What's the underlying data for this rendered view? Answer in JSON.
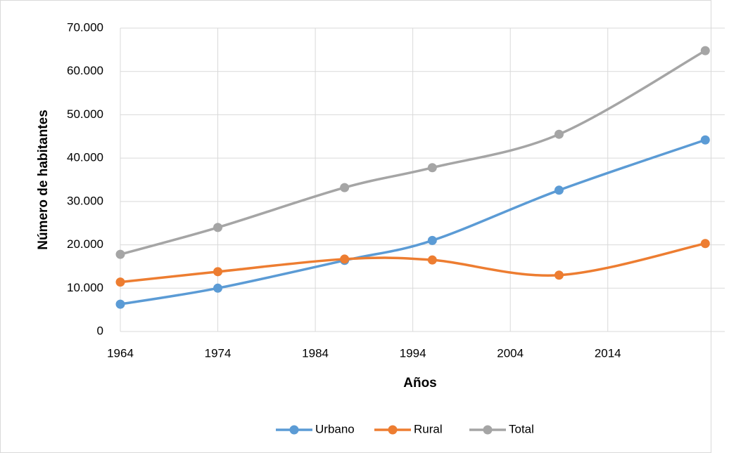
{
  "chart_data": {
    "type": "line",
    "xlabel": "Años",
    "ylabel": "Número de habitantes",
    "x": [
      1964,
      1974,
      1987,
      1996,
      2009,
      2024
    ],
    "series": [
      {
        "name": "Urbano",
        "color": "#5b9bd5",
        "values": [
          6300,
          10000,
          16400,
          21000,
          32600,
          44200
        ]
      },
      {
        "name": "Rural",
        "color": "#ed7d31",
        "values": [
          11400,
          13800,
          16700,
          16500,
          13000,
          20300
        ]
      },
      {
        "name": "Total",
        "color": "#a5a5a5",
        "values": [
          17800,
          24000,
          33200,
          37800,
          45500,
          64800
        ]
      }
    ],
    "xlim": [
      1964,
      2026
    ],
    "xticks": [
      1964,
      1974,
      1984,
      1994,
      2004,
      2014
    ],
    "ylim": [
      0,
      70000
    ],
    "yticks": [
      0,
      {
        "value": 10000,
        "label": "10.000"
      },
      {
        "value": 20000,
        "label": "20.000"
      },
      {
        "value": 30000,
        "label": "30.000"
      },
      {
        "value": 40000,
        "label": "40.000"
      },
      {
        "value": 50000,
        "label": "50.000"
      },
      {
        "value": 60000,
        "label": "60.000"
      },
      {
        "value": 70000,
        "label": "70.000"
      }
    ],
    "grid": true,
    "smooth": true,
    "legend": "bottom"
  }
}
